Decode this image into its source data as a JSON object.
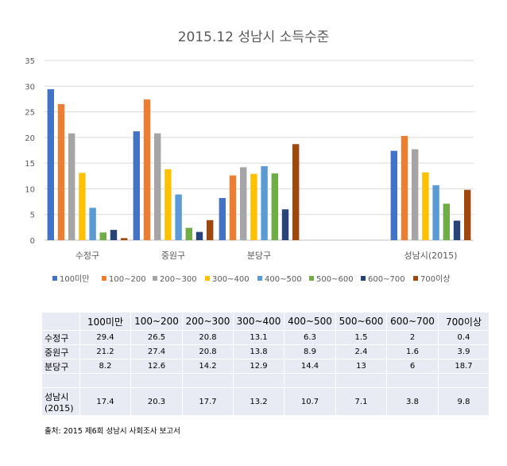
{
  "chart_data": {
    "type": "bar",
    "title": "2015.12 성남시 소득수준",
    "categories": [
      "수정구",
      "중원구",
      "분당구",
      "",
      "성남시(2015)"
    ],
    "ylim": [
      0,
      35
    ],
    "yticks": [
      0,
      5,
      10,
      15,
      20,
      25,
      30,
      35
    ],
    "grid": true,
    "legend": "bottom",
    "series": [
      {
        "name": "100미만",
        "color": "#4472C4",
        "values": [
          29.4,
          21.2,
          8.2,
          null,
          17.4
        ]
      },
      {
        "name": "100~200",
        "color": "#ED7D31",
        "values": [
          26.5,
          27.4,
          12.6,
          null,
          20.3
        ]
      },
      {
        "name": "200~300",
        "color": "#A5A5A5",
        "values": [
          20.8,
          20.8,
          14.2,
          null,
          17.7
        ]
      },
      {
        "name": "300~400",
        "color": "#FFC000",
        "values": [
          13.1,
          13.8,
          12.9,
          null,
          13.2
        ]
      },
      {
        "name": "400~500",
        "color": "#5B9BD5",
        "values": [
          6.3,
          8.9,
          14.4,
          null,
          10.7
        ]
      },
      {
        "name": "500~600",
        "color": "#70AD47",
        "values": [
          1.5,
          2.4,
          13,
          null,
          7.1
        ]
      },
      {
        "name": "600~700",
        "color": "#264478",
        "values": [
          2,
          1.6,
          6,
          null,
          3.8
        ]
      },
      {
        "name": "700이상",
        "color": "#9E480E",
        "values": [
          0.4,
          3.9,
          18.7,
          null,
          9.8
        ]
      }
    ]
  },
  "table": {
    "headers": [
      "",
      "100미만",
      "100~200",
      "200~300",
      "300~400",
      "400~500",
      "500~600",
      "600~700",
      "700이상"
    ],
    "rows": [
      [
        "수정구",
        "29.4",
        "26.5",
        "20.8",
        "13.1",
        "6.3",
        "1.5",
        "2",
        "0.4"
      ],
      [
        "중원구",
        "21.2",
        "27.4",
        "20.8",
        "13.8",
        "8.9",
        "2.4",
        "1.6",
        "3.9"
      ],
      [
        "분당구",
        "8.2",
        "12.6",
        "14.2",
        "12.9",
        "14.4",
        "13",
        "6",
        "18.7"
      ],
      [
        "",
        "",
        "",
        "",
        "",
        "",
        "",
        "",
        ""
      ],
      [
        "성남시(2015)",
        "17.4",
        "20.3",
        "17.7",
        "13.2",
        "10.7",
        "7.1",
        "3.8",
        "9.8"
      ]
    ]
  },
  "source": "출처: 2015 제6회 성남시 사회조사 보고서"
}
